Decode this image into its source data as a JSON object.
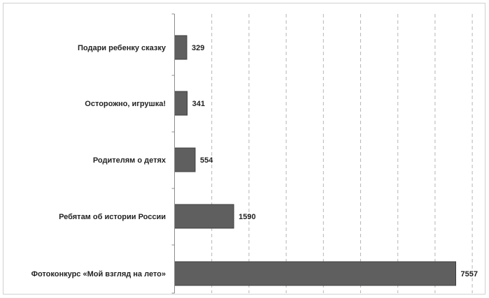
{
  "chart_data": {
    "type": "bar",
    "orientation": "horizontal",
    "categories": [
      "Подари ребенку сказку",
      "Осторожно, игрушка!",
      "Родителям о детях",
      "Ребятам об истории России",
      "Фотоконкурс «Мой взгляд на лето»"
    ],
    "values": [
      329,
      341,
      554,
      1590,
      7557
    ],
    "data_labels": [
      "329",
      "341",
      "554",
      "1590",
      "7557"
    ],
    "xlim": [
      0,
      8000
    ],
    "grid": "vertical dashed",
    "legend": "none"
  },
  "colors": {
    "bar_fill": "#5f5f5f",
    "bar_stroke": "#3c3c3c",
    "grid": "#b5b5b5",
    "axis": "#8c8c8c"
  }
}
